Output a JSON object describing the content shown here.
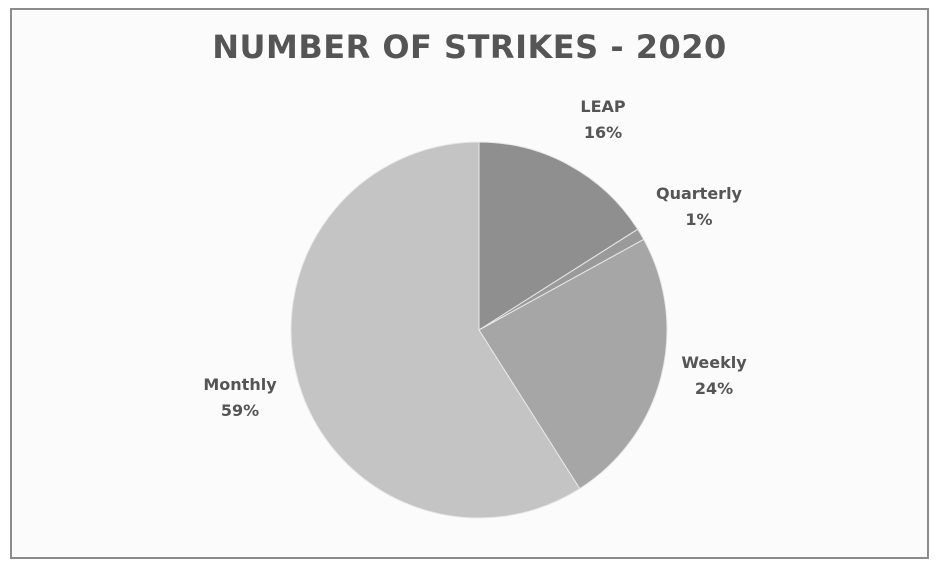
{
  "chart_data": {
    "type": "pie",
    "title": "NUMBER OF STRIKES - 2020",
    "slices": [
      {
        "name": "LEAP",
        "value": 16,
        "value_label": "16%",
        "color": "#8f8f8f"
      },
      {
        "name": "Quarterly",
        "value": 1,
        "value_label": "1%",
        "color": "#9a9a9a"
      },
      {
        "name": "Weekly",
        "value": 24,
        "value_label": "24%",
        "color": "#a6a6a6"
      },
      {
        "name": "Monthly",
        "value": 59,
        "value_label": "59%",
        "color": "#c4c4c4"
      }
    ],
    "start_angle_deg": 0,
    "direction": "clockwise",
    "label_placement": "outside"
  }
}
